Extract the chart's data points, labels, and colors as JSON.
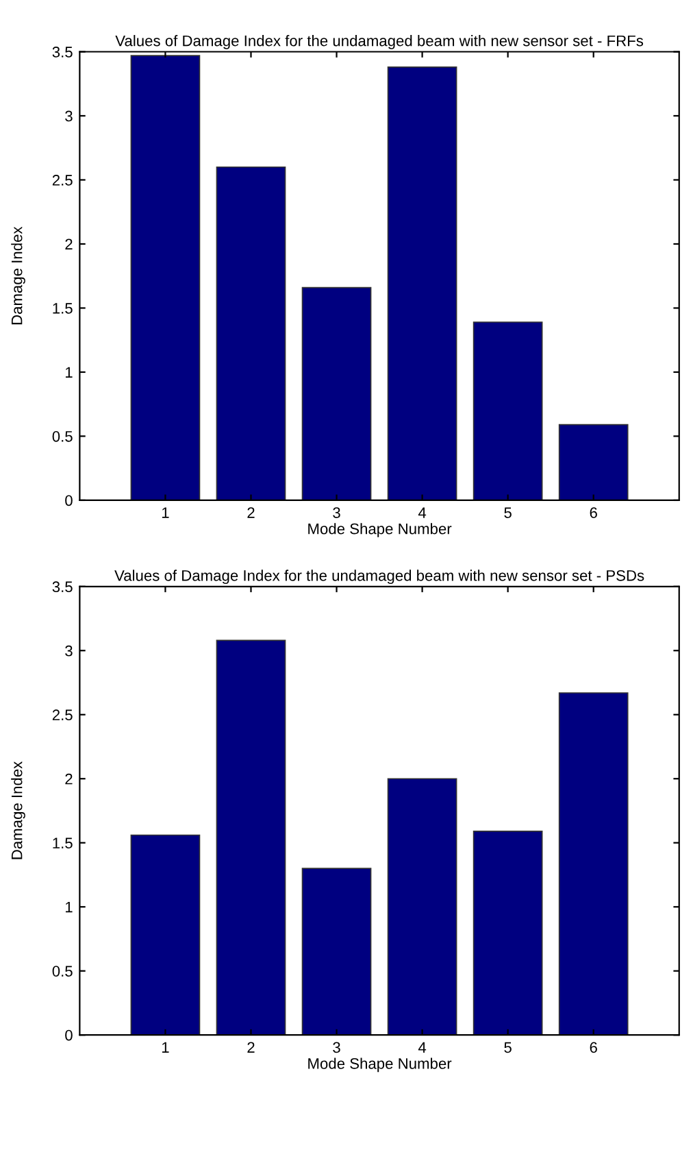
{
  "chart_data": [
    {
      "type": "bar",
      "title": "Values of Damage Index for the undamaged beam with new sensor set - FRFs",
      "xlabel": "Mode Shape Number",
      "ylabel": "Damage Index",
      "categories": [
        "1",
        "2",
        "3",
        "4",
        "5",
        "6"
      ],
      "values": [
        3.47,
        2.6,
        1.66,
        3.38,
        1.39,
        0.59
      ],
      "color": "#000080",
      "ylim": [
        0,
        3.5
      ],
      "yticks": [
        0,
        0.5,
        1,
        1.5,
        2,
        2.5,
        3,
        3.5
      ],
      "grid": false
    },
    {
      "type": "bar",
      "title": "Values of Damage Index for the undamaged beam with new sensor set - PSDs",
      "xlabel": "Mode Shape Number",
      "ylabel": "Damage Index",
      "categories": [
        "1",
        "2",
        "3",
        "4",
        "5",
        "6"
      ],
      "values": [
        1.56,
        3.08,
        1.3,
        2.0,
        1.59,
        2.67
      ],
      "color": "#000080",
      "ylim": [
        0,
        3.5
      ],
      "yticks": [
        0,
        0.5,
        1,
        1.5,
        2,
        2.5,
        3,
        3.5
      ],
      "grid": false
    }
  ]
}
